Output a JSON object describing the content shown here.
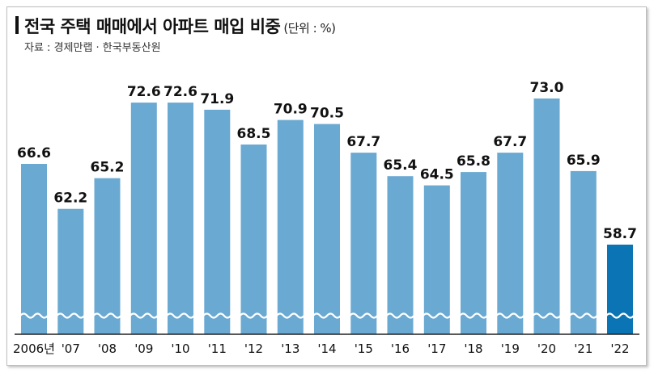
{
  "header": {
    "title": "전국 주택 매매에서 아파트 매입 비중",
    "unit": "(단위 : %)",
    "source": "자료 : 경제만랩 · 한국부동산원"
  },
  "colors": {
    "bar": "#6aa9d2",
    "highlight": "#0b74b4",
    "wave": "#ffffff"
  },
  "chart_data": {
    "type": "bar",
    "title": "전국 주택 매매에서 아파트 매입 비중",
    "categories": [
      "2006년",
      "'07",
      "'08",
      "'09",
      "'10",
      "'11",
      "'12",
      "'13",
      "'14",
      "'15",
      "'16",
      "'17",
      "'18",
      "'19",
      "'20",
      "'21",
      "'22"
    ],
    "values": [
      66.6,
      62.2,
      65.2,
      72.6,
      72.6,
      71.9,
      68.5,
      70.9,
      70.5,
      67.7,
      65.4,
      64.5,
      65.8,
      67.7,
      73.0,
      65.9,
      58.7
    ],
    "value_labels": [
      "66.6",
      "62.2",
      "65.2",
      "72.6",
      "72.6",
      "71.9",
      "68.5",
      "70.9",
      "70.5",
      "67.7",
      "65.4",
      "64.5",
      "65.8",
      "67.7",
      "73.0",
      "65.9",
      "58.7"
    ],
    "highlight_index": 16,
    "axis_break": true,
    "ylim": [
      50,
      75
    ],
    "xlabel": "",
    "ylabel": "",
    "grid": false
  }
}
